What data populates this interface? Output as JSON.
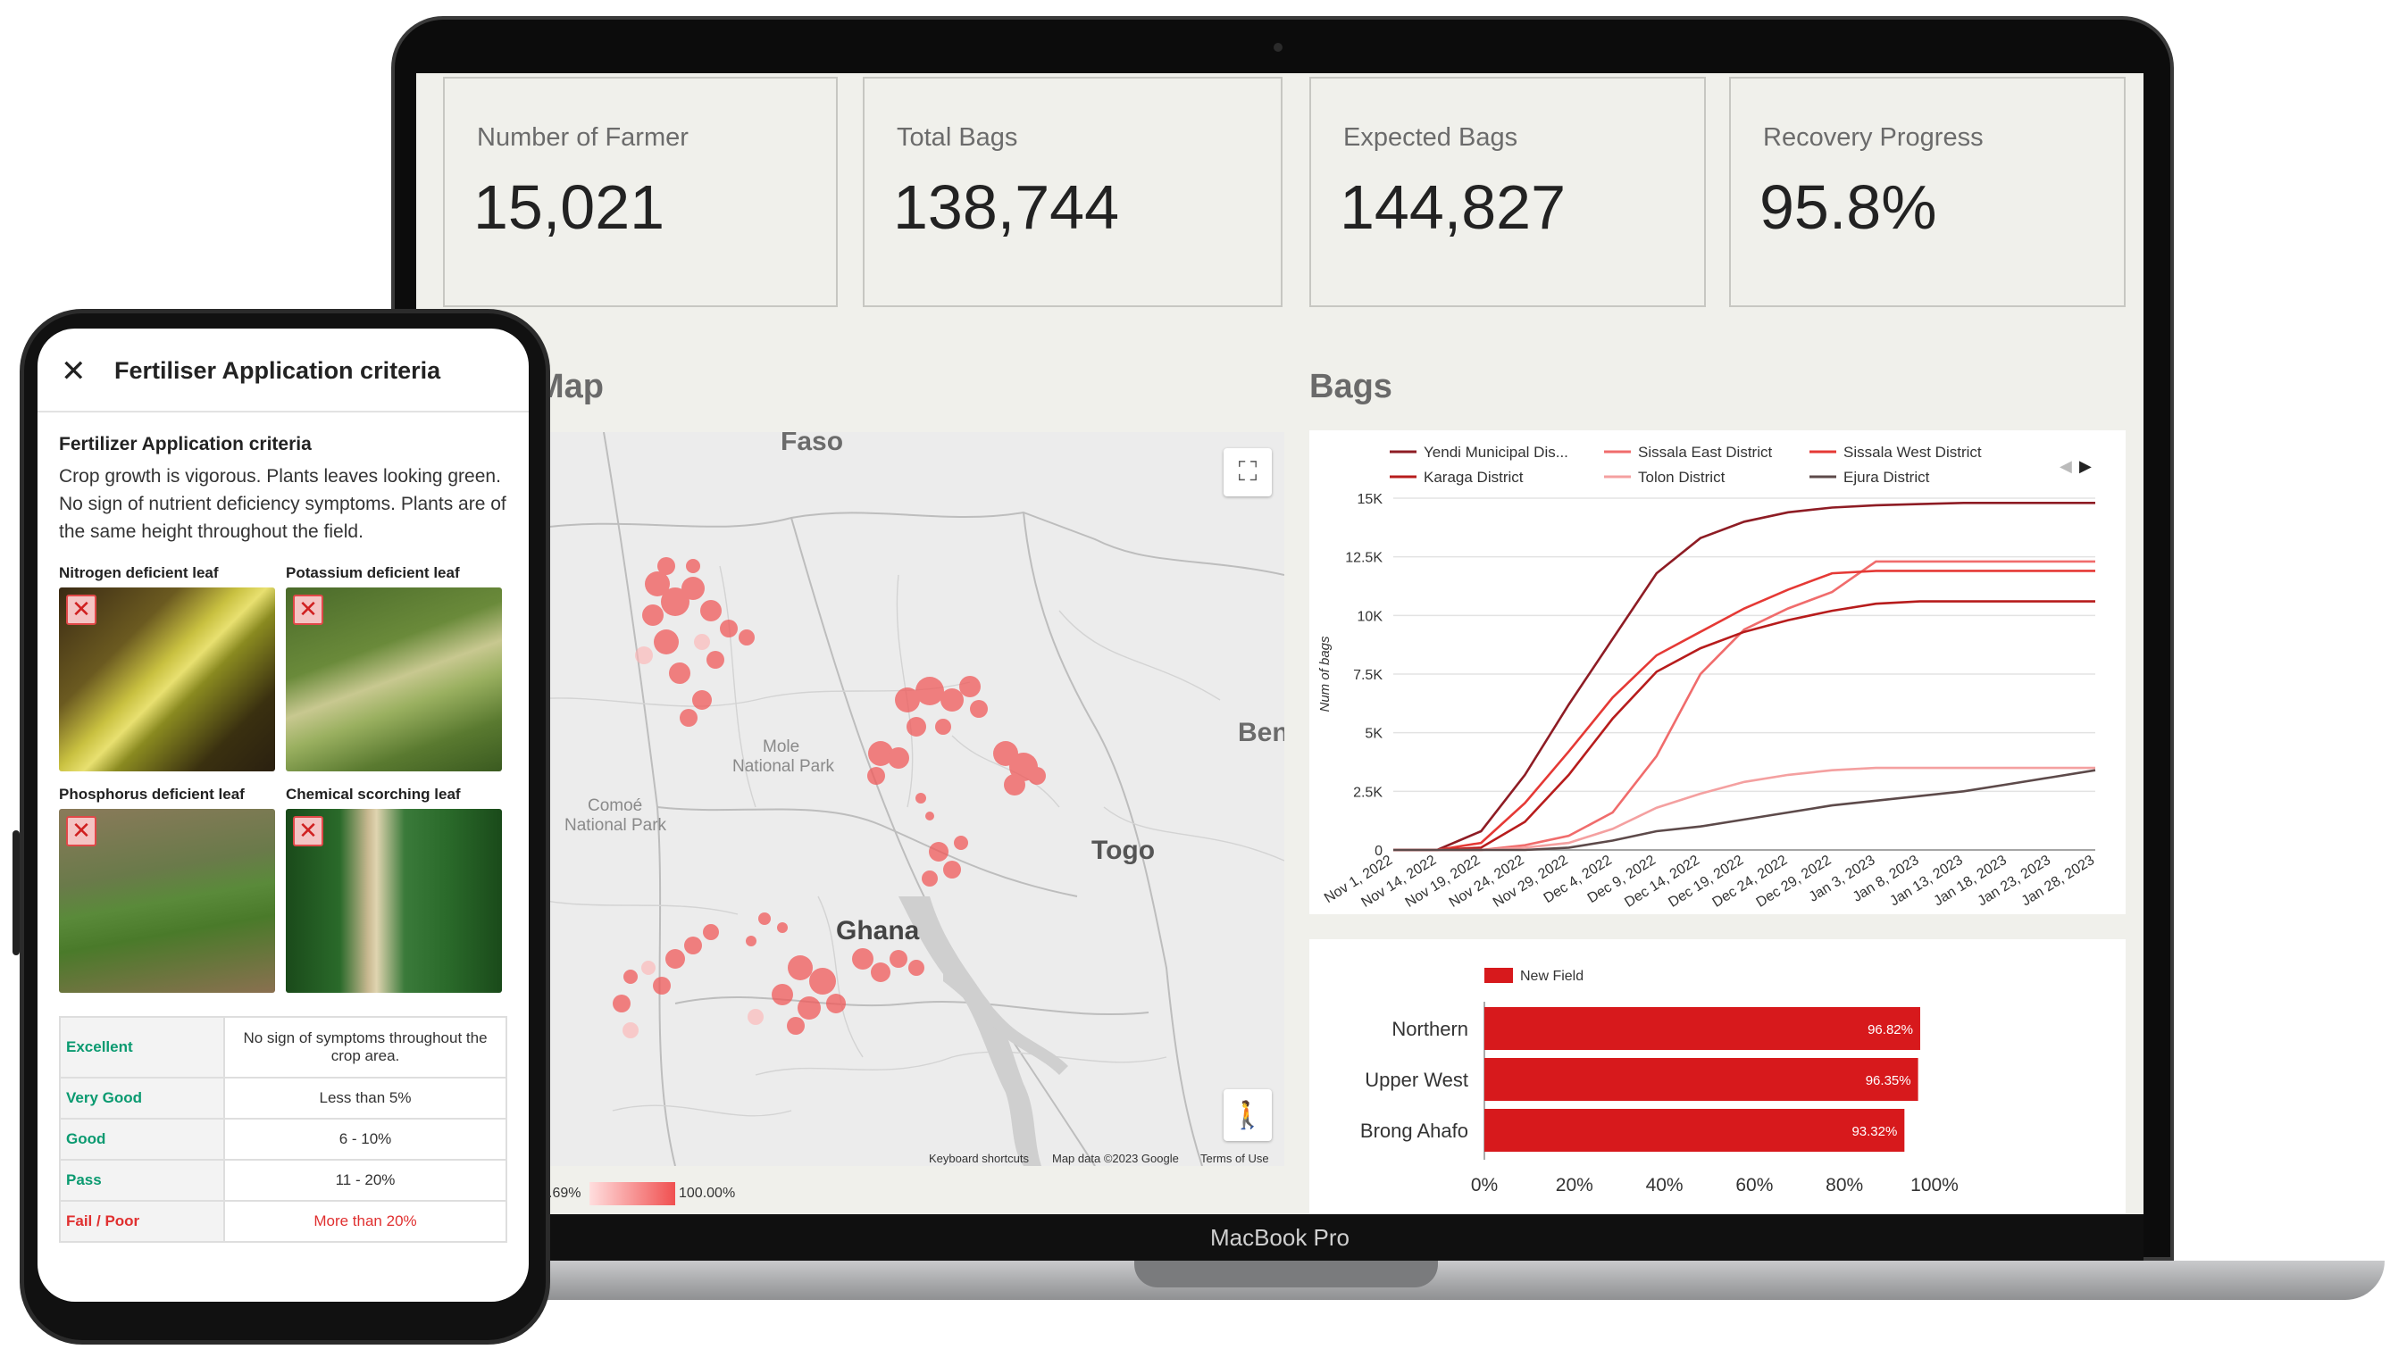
{
  "laptop": {
    "brand": "MacBook Pro",
    "kpis": [
      {
        "title": "Number of Farmer",
        "value": "15,021"
      },
      {
        "title": "Total Bags",
        "value": "138,744"
      },
      {
        "title": "Expected Bags",
        "value": "144,827"
      },
      {
        "title": "Recovery Progress",
        "value": "95.8%"
      }
    ],
    "map": {
      "title": "Map",
      "labels": {
        "faso": "Faso",
        "benin": "Ben",
        "togo": "Togo",
        "ghana": "Ghana",
        "mole1": "Mole",
        "mole2": "National Park",
        "comoe1": "Comoé",
        "comoe2": "National Park"
      },
      "attribution": {
        "shortcuts": "Keyboard shortcuts",
        "data": "Map data ©2023 Google",
        "terms": "Terms of Use"
      },
      "legend": {
        "min": ".69%",
        "max": "100.00%"
      }
    },
    "bags": {
      "title": "Bags"
    }
  },
  "chart_data": [
    {
      "type": "line",
      "title": "Bags",
      "ylabel": "Num of bags",
      "ylim": [
        0,
        15000
      ],
      "yticks": [
        "0",
        "2.5K",
        "5K",
        "7.5K",
        "10K",
        "12.5K",
        "15K"
      ],
      "x": [
        "Nov 1, 2022",
        "Nov 14, 2022",
        "Nov 19, 2022",
        "Nov 24, 2022",
        "Nov 29, 2022",
        "Dec 4, 2022",
        "Dec 9, 2022",
        "Dec 14, 2022",
        "Dec 19, 2022",
        "Dec 24, 2022",
        "Dec 29, 2022",
        "Jan 3, 2023",
        "Jan 8, 2023",
        "Jan 13, 2023",
        "Jan 18, 2023",
        "Jan 23, 2023",
        "Jan 28, 2023"
      ],
      "legend_position": "top",
      "series": [
        {
          "name": "Yendi Municipal Dis...",
          "color": "#8e1c24",
          "values": [
            0,
            0,
            800,
            3200,
            6200,
            9000,
            11800,
            13300,
            14000,
            14400,
            14600,
            14700,
            14750,
            14800,
            14800,
            14800,
            14800
          ]
        },
        {
          "name": "Sissala East District",
          "color": "#f06c6c",
          "values": [
            0,
            0,
            0,
            200,
            600,
            1600,
            4000,
            7500,
            9400,
            10300,
            11000,
            12300,
            12300,
            12300,
            12300,
            12300,
            12300
          ]
        },
        {
          "name": "Sissala West District",
          "color": "#e53935",
          "values": [
            0,
            0,
            300,
            2000,
            4200,
            6500,
            8300,
            9300,
            10300,
            11100,
            11800,
            11900,
            11900,
            11900,
            11900,
            11900,
            11900
          ]
        },
        {
          "name": "Karaga District",
          "color": "#b71c1c",
          "values": [
            0,
            0,
            100,
            1200,
            3200,
            5600,
            7600,
            8600,
            9300,
            9800,
            10200,
            10500,
            10600,
            10600,
            10600,
            10600,
            10600
          ]
        },
        {
          "name": "Tolon District",
          "color": "#f4a0a0",
          "values": [
            0,
            0,
            0,
            100,
            300,
            900,
            1800,
            2400,
            2900,
            3200,
            3400,
            3500,
            3500,
            3500,
            3500,
            3500,
            3500
          ]
        },
        {
          "name": "Ejura District",
          "color": "#5d4a4a",
          "values": [
            0,
            0,
            0,
            0,
            100,
            400,
            800,
            1000,
            1300,
            1600,
            1900,
            2100,
            2300,
            2500,
            2800,
            3100,
            3400
          ]
        }
      ]
    },
    {
      "type": "bar",
      "orientation": "horizontal",
      "categories": [
        "Northern",
        "Upper West",
        "Brong Ahafo"
      ],
      "series": [
        {
          "name": "New Field",
          "color": "#d7191c",
          "values": [
            96.82,
            96.35,
            93.32
          ]
        }
      ],
      "value_labels": [
        "96.82%",
        "96.35%",
        "93.32%"
      ],
      "xlim": [
        0,
        100
      ],
      "xticks": [
        "0%",
        "20%",
        "40%",
        "60%",
        "80%",
        "100%"
      ],
      "legend_position": "top"
    }
  ],
  "phone": {
    "header_title": "Fertiliser Application criteria",
    "section_title": "Fertilizer Application criteria",
    "description": "Crop growth is vigorous. Plants leaves looking green. No sign of nutrient deficiency symptoms. Plants are of the same height throughout the field.",
    "leaves": [
      {
        "label": "Nitrogen deficient leaf",
        "status_icon": "x-icon"
      },
      {
        "label": "Potassium deficient leaf",
        "status_icon": "x-icon"
      },
      {
        "label": "Phosphorus deficient leaf",
        "status_icon": "x-icon"
      },
      {
        "label": "Chemical  scorching leaf",
        "status_icon": "x-icon"
      }
    ],
    "criteria": [
      {
        "grade": "Excellent",
        "desc": "No sign of symptoms throughout the crop area."
      },
      {
        "grade": "Very Good",
        "desc": "Less than 5%"
      },
      {
        "grade": "Good",
        "desc": "6 - 10%"
      },
      {
        "grade": "Pass",
        "desc": "11 - 20%"
      },
      {
        "grade": "Fail / Poor",
        "desc": "More than 20%"
      }
    ]
  }
}
